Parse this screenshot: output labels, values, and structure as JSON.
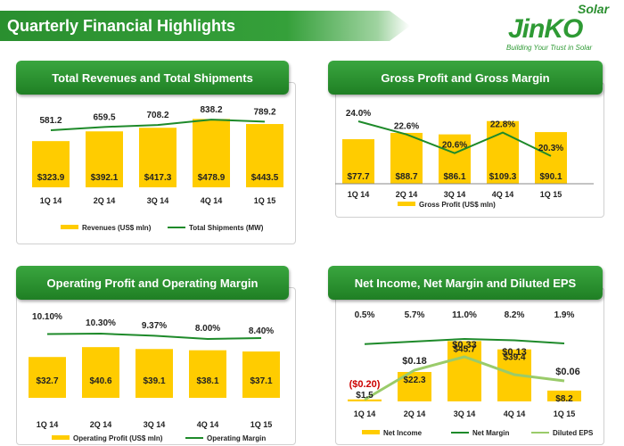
{
  "page": {
    "title": "Quarterly Financial Highlights",
    "logo": {
      "brand": "JinKO",
      "sub": "Solar",
      "tagline": "Building Your Trust in Solar"
    }
  },
  "colors": {
    "bar": "#ffcc00",
    "line": "#1e8a2a",
    "eps": "#9acb6a",
    "brand": "#2a8f2f"
  },
  "chart_data": [
    {
      "type": "bar",
      "title": "Total Revenues and Total Shipments",
      "categories": [
        "1Q 14",
        "2Q 14",
        "3Q 14",
        "4Q 14",
        "1Q 15"
      ],
      "series": [
        {
          "name": "Revenues (US$ mln)",
          "kind": "bar",
          "values": [
            323.9,
            392.1,
            417.3,
            478.9,
            443.5
          ],
          "labels": [
            "$323.9",
            "$392.1",
            "$417.3",
            "$478.9",
            "$443.5"
          ]
        },
        {
          "name": "Total Shipments (MW)",
          "kind": "line",
          "values": [
            581.2,
            659.5,
            708.2,
            838.2,
            789.2
          ],
          "labels": [
            "581.2",
            "659.5",
            "708.2",
            "838.2",
            "789.2"
          ]
        }
      ]
    },
    {
      "type": "bar",
      "title": "Gross Profit and Gross Margin",
      "categories": [
        "1Q 14",
        "2Q 14",
        "3Q 14",
        "4Q 14",
        "1Q 15"
      ],
      "series": [
        {
          "name": "Gross Profit (US$ mln)",
          "kind": "bar",
          "values": [
            77.7,
            88.7,
            86.1,
            109.3,
            90.1
          ],
          "labels": [
            "$77.7",
            "$88.7",
            "$86.1",
            "$109.3",
            "$90.1"
          ]
        },
        {
          "kind": "line",
          "values": [
            24.0,
            22.6,
            20.6,
            22.8,
            20.3
          ],
          "labels": [
            "24.0%",
            "22.6%",
            "20.6%",
            "22.8%",
            "20.3%"
          ]
        }
      ]
    },
    {
      "type": "bar",
      "title": "Operating Profit and Operating Margin",
      "categories": [
        "1Q 14",
        "2Q 14",
        "3Q 14",
        "4Q 14",
        "1Q 15"
      ],
      "series": [
        {
          "name": "Operating Profit (US$ mln)",
          "kind": "bar",
          "values": [
            32.7,
            40.6,
            39.1,
            38.1,
            37.1
          ],
          "labels": [
            "$32.7",
            "$40.6",
            "$39.1",
            "$38.1",
            "$37.1"
          ]
        },
        {
          "name": "Operating Margin",
          "kind": "line",
          "values": [
            10.1,
            10.3,
            9.37,
            8.0,
            8.4
          ],
          "labels": [
            "10.10%",
            "10.30%",
            "9.37%",
            "8.00%",
            "8.40%"
          ]
        }
      ]
    },
    {
      "type": "bar",
      "title": "Net Income, Net Margin and Diluted EPS",
      "categories": [
        "1Q 14",
        "2Q 14",
        "3Q 14",
        "4Q 14",
        "1Q 15"
      ],
      "series": [
        {
          "name": "Net Income",
          "kind": "bar",
          "values": [
            1.5,
            22.3,
            45.7,
            39.4,
            8.2
          ],
          "labels": [
            "$1.5",
            "$22.3",
            "$45.7",
            "$39.4",
            "$8.2"
          ]
        },
        {
          "name": "Net Margin",
          "kind": "line",
          "values": [
            0.5,
            5.7,
            11.0,
            8.2,
            1.9
          ],
          "labels": [
            "0.5%",
            "5.7%",
            "11.0%",
            "8.2%",
            "1.9%"
          ]
        },
        {
          "name": "Diluted EPS",
          "kind": "line",
          "values": [
            -0.2,
            0.18,
            0.33,
            0.13,
            0.06
          ],
          "labels": [
            "($0.20)",
            "$0.18",
            "$0.33",
            "$0.13",
            "$0.06"
          ]
        }
      ]
    }
  ]
}
